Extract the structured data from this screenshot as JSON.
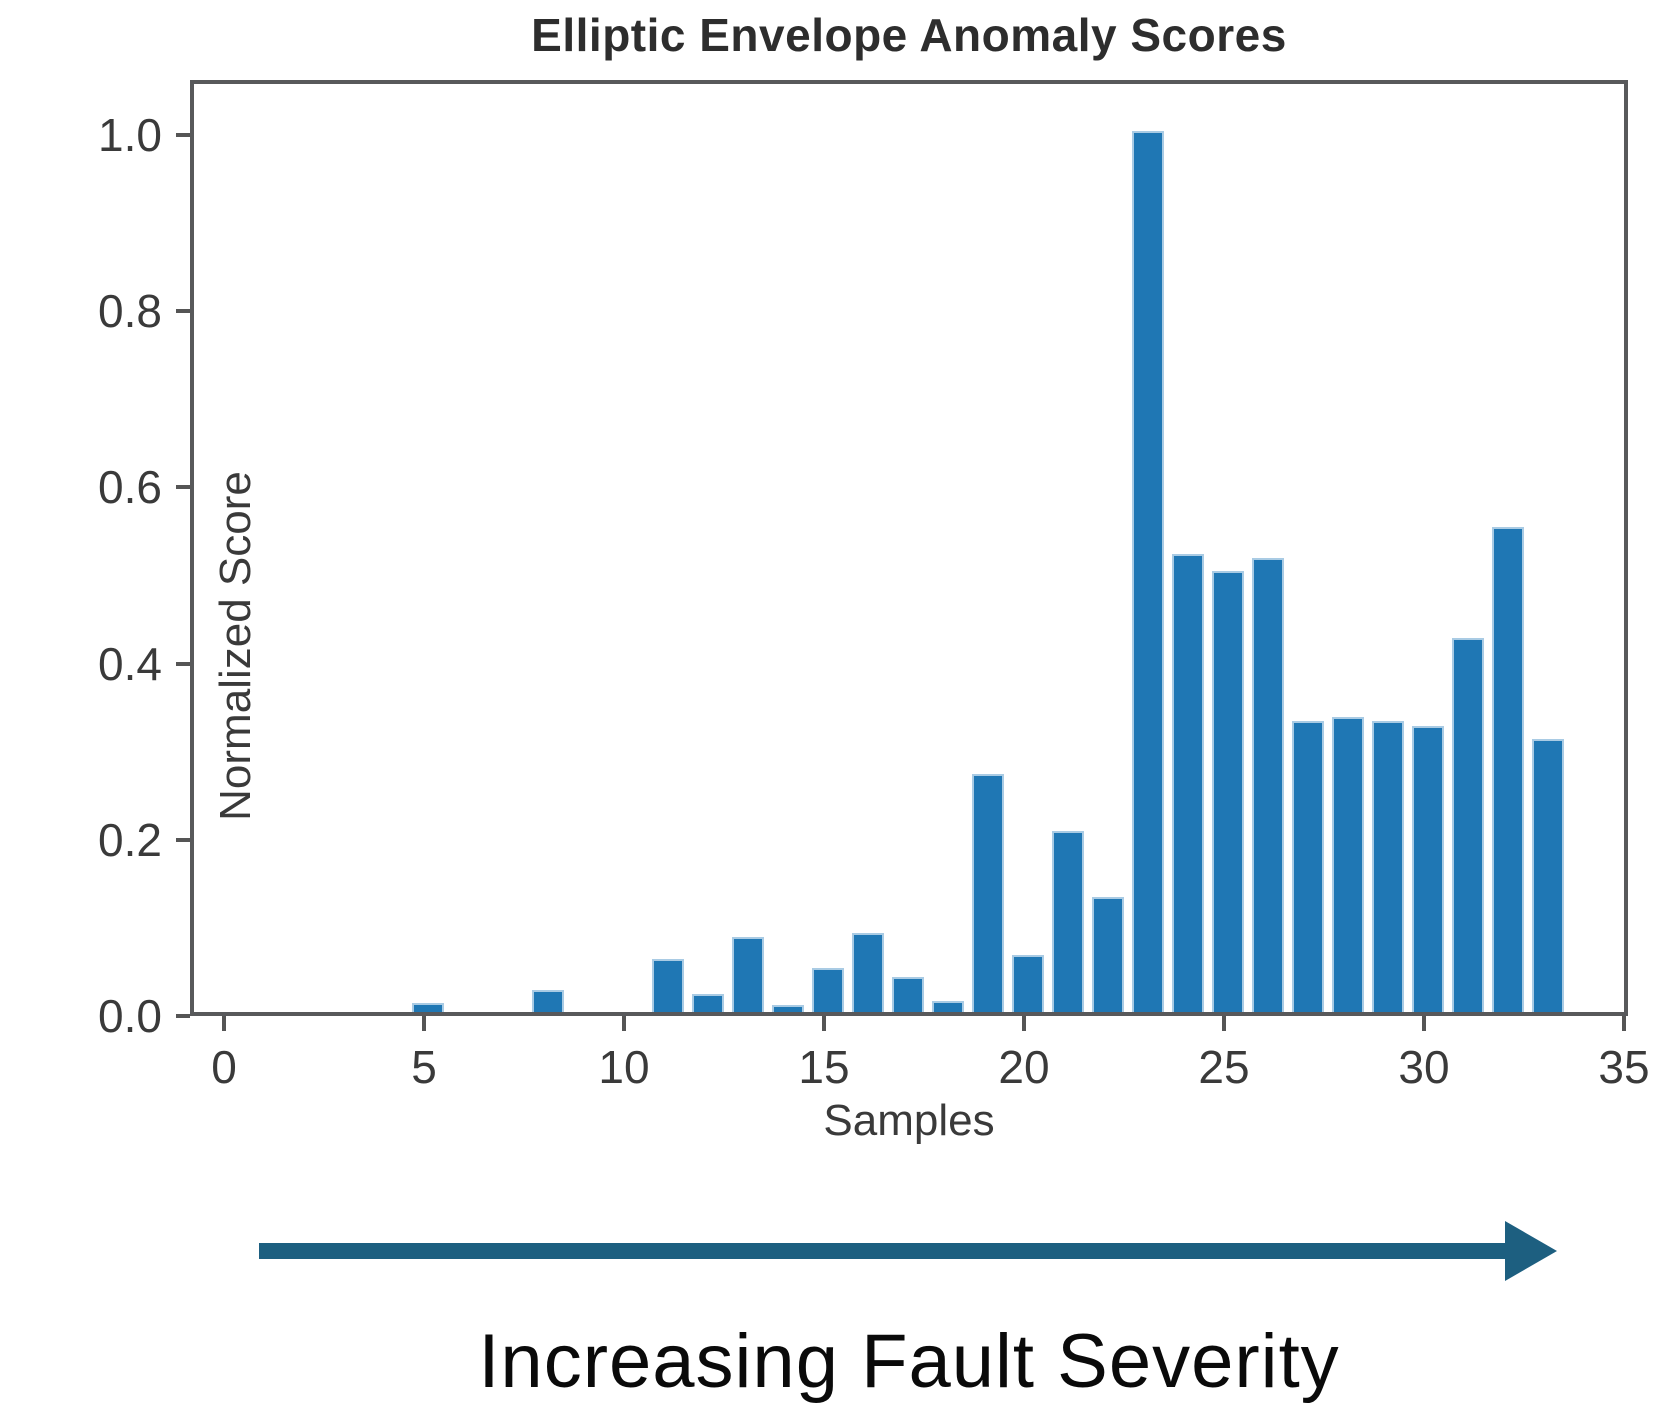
{
  "chart_data": {
    "type": "bar",
    "title": "Elliptic Envelope Anomaly Scores",
    "xlabel": "Samples",
    "ylabel": "Normalized Score",
    "x": [
      0,
      1,
      2,
      3,
      4,
      5,
      6,
      7,
      8,
      9,
      10,
      11,
      12,
      13,
      14,
      15,
      16,
      17,
      18,
      19,
      20,
      21,
      22,
      23,
      24,
      25,
      26,
      27,
      28,
      29,
      30,
      31,
      32,
      33
    ],
    "values": [
      0,
      0,
      0,
      0,
      0,
      0.01,
      0,
      0,
      0.025,
      0,
      0,
      0.06,
      0.02,
      0.085,
      0.008,
      0.05,
      0.09,
      0.04,
      0.012,
      0.27,
      0.065,
      0.205,
      0.13,
      1.0,
      0.52,
      0.5,
      0.515,
      0.33,
      0.335,
      0.33,
      0.325,
      0.425,
      0.55,
      0.31
    ],
    "xticks": [
      0,
      5,
      10,
      15,
      20,
      25,
      30,
      35
    ],
    "yticks": [
      "0.0",
      "0.2",
      "0.4",
      "0.6",
      "0.8",
      "1.0"
    ],
    "xlim": [
      -0.85,
      35.1
    ],
    "ylim": [
      0,
      1.06
    ],
    "grid": false,
    "legend": null,
    "bar_color": "#1f77b4"
  },
  "annotation": {
    "label": "Increasing Fault Severity",
    "arrow_color": "#1d5f80",
    "arrow_direction": "right"
  }
}
